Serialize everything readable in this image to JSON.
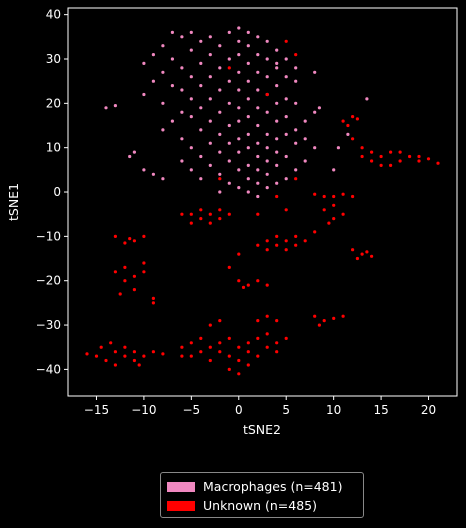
{
  "chart_data": {
    "type": "scatter",
    "xlabel": "tSNE2",
    "ylabel": "tSNE1",
    "xlim": [
      -18,
      23
    ],
    "ylim": [
      -46,
      41.5
    ],
    "xticks": [
      -15,
      -10,
      -5,
      0,
      5,
      10,
      15,
      20
    ],
    "yticks": [
      -40,
      -30,
      -20,
      -10,
      0,
      10,
      20,
      30,
      40
    ],
    "legend_position": "bottom-center",
    "series": [
      {
        "name": "Macrophages (n=481)",
        "color": "#f088c0",
        "points": [
          [
            -1,
            36
          ],
          [
            1,
            36
          ],
          [
            -3,
            35
          ],
          [
            2,
            35
          ],
          [
            -6,
            35
          ],
          [
            -4,
            34
          ],
          [
            0,
            34
          ],
          [
            3,
            34
          ],
          [
            -8,
            33
          ],
          [
            -2,
            33
          ],
          [
            1,
            33
          ],
          [
            4,
            32
          ],
          [
            -5,
            32
          ],
          [
            -9,
            31
          ],
          [
            -3,
            31
          ],
          [
            0,
            31
          ],
          [
            2,
            31
          ],
          [
            -7,
            30
          ],
          [
            -1,
            30
          ],
          [
            3,
            30
          ],
          [
            5,
            30
          ],
          [
            -10,
            29
          ],
          [
            -4,
            29
          ],
          [
            1,
            29
          ],
          [
            -6,
            28
          ],
          [
            -2,
            28
          ],
          [
            4,
            28
          ],
          [
            6,
            28
          ],
          [
            -8,
            27
          ],
          [
            0,
            27
          ],
          [
            2,
            27
          ],
          [
            -5,
            26
          ],
          [
            -3,
            26
          ],
          [
            3,
            26
          ],
          [
            5,
            26
          ],
          [
            -9,
            25
          ],
          [
            -1,
            25
          ],
          [
            1,
            25
          ],
          [
            -7,
            24
          ],
          [
            -4,
            24
          ],
          [
            4,
            24
          ],
          [
            -6,
            23
          ],
          [
            -2,
            23
          ],
          [
            0,
            23
          ],
          [
            2,
            23
          ],
          [
            -10,
            22
          ],
          [
            3,
            22
          ],
          [
            -5,
            21
          ],
          [
            -3,
            21
          ],
          [
            1,
            21
          ],
          [
            5,
            21
          ],
          [
            -8,
            20
          ],
          [
            -1,
            20
          ],
          [
            4,
            20
          ],
          [
            6,
            20
          ],
          [
            -4,
            19
          ],
          [
            0,
            19
          ],
          [
            2,
            19
          ],
          [
            -6,
            18
          ],
          [
            -2,
            18
          ],
          [
            3,
            18
          ],
          [
            8,
            18
          ],
          [
            -5,
            17
          ],
          [
            1,
            17
          ],
          [
            5,
            17
          ],
          [
            -7,
            16
          ],
          [
            -3,
            16
          ],
          [
            0,
            16
          ],
          [
            4,
            16
          ],
          [
            7,
            16
          ],
          [
            -1,
            15
          ],
          [
            2,
            15
          ],
          [
            -4,
            14
          ],
          [
            6,
            14
          ],
          [
            -8,
            14
          ],
          [
            -2,
            13
          ],
          [
            1,
            13
          ],
          [
            3,
            13
          ],
          [
            5,
            13
          ],
          [
            -6,
            12
          ],
          [
            0,
            12
          ],
          [
            4,
            12
          ],
          [
            7,
            12
          ],
          [
            -3,
            11
          ],
          [
            -1,
            11
          ],
          [
            2,
            11
          ],
          [
            6,
            11
          ],
          [
            -5,
            10
          ],
          [
            1,
            10
          ],
          [
            3,
            10
          ],
          [
            8,
            10
          ],
          [
            -2,
            9
          ],
          [
            0,
            9
          ],
          [
            4,
            9
          ],
          [
            -4,
            8
          ],
          [
            2,
            8
          ],
          [
            5,
            8
          ],
          [
            -6,
            7
          ],
          [
            -1,
            7
          ],
          [
            3,
            7
          ],
          [
            7,
            7
          ],
          [
            -3,
            6
          ],
          [
            1,
            6
          ],
          [
            4,
            6
          ],
          [
            -5,
            5
          ],
          [
            0,
            5
          ],
          [
            2,
            5
          ],
          [
            6,
            5
          ],
          [
            -2,
            4
          ],
          [
            3,
            4
          ],
          [
            -4,
            3
          ],
          [
            1,
            3
          ],
          [
            5,
            3
          ],
          [
            -1,
            2
          ],
          [
            2,
            2
          ],
          [
            4,
            2
          ],
          [
            0,
            1
          ],
          [
            3,
            1
          ],
          [
            -2,
            0
          ],
          [
            1,
            0
          ],
          [
            2,
            -1
          ],
          [
            -14,
            19
          ],
          [
            -13,
            19.5
          ],
          [
            -11.5,
            8
          ],
          [
            -11,
            9
          ],
          [
            -10,
            5
          ],
          [
            -9,
            4
          ],
          [
            -8,
            3
          ],
          [
            13.5,
            21
          ],
          [
            8.5,
            19
          ],
          [
            10.5,
            10
          ],
          [
            11.5,
            13
          ],
          [
            10,
            5
          ],
          [
            -7,
            36
          ],
          [
            -5,
            36
          ],
          [
            0,
            37
          ],
          [
            4,
            29
          ],
          [
            6,
            25
          ],
          [
            8,
            27
          ]
        ]
      },
      {
        "name": "Unknown (n=485)",
        "color": "#ff0000",
        "points": [
          [
            -16,
            -36.5
          ],
          [
            -15,
            -37
          ],
          [
            -14,
            -38
          ],
          [
            -13,
            -36
          ],
          [
            -13,
            -39
          ],
          [
            -12,
            -35
          ],
          [
            -12,
            -37
          ],
          [
            -11,
            -36
          ],
          [
            -11,
            -38
          ],
          [
            -10,
            -37
          ],
          [
            -9,
            -36
          ],
          [
            -8,
            -36.5
          ],
          [
            -13.5,
            -34
          ],
          [
            -14.5,
            -35
          ],
          [
            -10.5,
            -39
          ],
          [
            -6,
            -35
          ],
          [
            -5,
            -34
          ],
          [
            -5,
            -37
          ],
          [
            -4,
            -33
          ],
          [
            -4,
            -36
          ],
          [
            -3,
            -35
          ],
          [
            -3,
            -38
          ],
          [
            -2,
            -34
          ],
          [
            -2,
            -36
          ],
          [
            -1,
            -33
          ],
          [
            -1,
            -37
          ],
          [
            0,
            -35
          ],
          [
            0,
            -38
          ],
          [
            1,
            -34
          ],
          [
            1,
            -36
          ],
          [
            2,
            -33
          ],
          [
            2,
            -37
          ],
          [
            3,
            -35
          ],
          [
            3,
            -32
          ],
          [
            4,
            -34
          ],
          [
            4,
            -36
          ],
          [
            5,
            -33
          ],
          [
            -1,
            -40
          ],
          [
            0,
            -41
          ],
          [
            1,
            -39
          ],
          [
            -3,
            -30
          ],
          [
            -2,
            -29
          ],
          [
            2,
            -29
          ],
          [
            3,
            -28
          ],
          [
            4,
            -29
          ],
          [
            -6,
            -37
          ],
          [
            8,
            -28
          ],
          [
            9,
            -29
          ],
          [
            10,
            -28.5
          ],
          [
            11,
            -28
          ],
          [
            8.5,
            -30
          ],
          [
            -13,
            -18
          ],
          [
            -12,
            -17
          ],
          [
            -12,
            -20
          ],
          [
            -11,
            -19
          ],
          [
            -11,
            -22
          ],
          [
            -10,
            -18
          ],
          [
            -10,
            -16
          ],
          [
            -12.5,
            -23
          ],
          [
            -9,
            -25
          ],
          [
            -9,
            -24
          ],
          [
            -11.5,
            -10.5
          ],
          [
            -12,
            -11.5
          ],
          [
            -11,
            -11
          ],
          [
            -13,
            -10
          ],
          [
            -10,
            -10
          ],
          [
            -5,
            -5
          ],
          [
            -4,
            -6
          ],
          [
            -4,
            -4
          ],
          [
            -3,
            -5
          ],
          [
            -3,
            -7
          ],
          [
            -2,
            -6
          ],
          [
            -1,
            -5
          ],
          [
            -5,
            -7
          ],
          [
            -2,
            -4
          ],
          [
            -6,
            -5
          ],
          [
            3,
            -11
          ],
          [
            4,
            -12
          ],
          [
            4,
            -10
          ],
          [
            5,
            -11
          ],
          [
            5,
            -13
          ],
          [
            6,
            -12
          ],
          [
            6,
            -10
          ],
          [
            7,
            -11
          ],
          [
            3,
            -13
          ],
          [
            2,
            -12
          ],
          [
            8,
            -9
          ],
          [
            0,
            -14
          ],
          [
            -1,
            -17
          ],
          [
            0,
            -20
          ],
          [
            1,
            -21
          ],
          [
            2,
            -20
          ],
          [
            3,
            -21
          ],
          [
            0.5,
            -21.5
          ],
          [
            9,
            -4
          ],
          [
            10,
            -3
          ],
          [
            10,
            -6
          ],
          [
            11,
            -5
          ],
          [
            9.5,
            -7
          ],
          [
            9,
            -1
          ],
          [
            10,
            -1
          ],
          [
            11,
            -0.5
          ],
          [
            12,
            -1
          ],
          [
            8,
            -0.5
          ],
          [
            12,
            -13
          ],
          [
            13,
            -14
          ],
          [
            14,
            -14.5
          ],
          [
            13.5,
            -13.5
          ],
          [
            12.5,
            -15
          ],
          [
            12,
            12
          ],
          [
            13,
            10
          ],
          [
            14,
            9
          ],
          [
            15,
            8
          ],
          [
            16,
            9
          ],
          [
            17,
            7
          ],
          [
            18,
            8
          ],
          [
            19,
            7
          ],
          [
            20,
            7.5
          ],
          [
            21,
            6.5
          ],
          [
            15,
            6
          ],
          [
            14,
            7
          ],
          [
            16,
            6
          ],
          [
            13,
            8
          ],
          [
            17,
            9
          ],
          [
            19,
            8
          ],
          [
            11,
            16
          ],
          [
            12,
            17
          ],
          [
            11.5,
            15
          ],
          [
            12.5,
            16.5
          ],
          [
            5,
            34
          ],
          [
            6,
            31
          ],
          [
            3,
            22
          ],
          [
            -1,
            28
          ],
          [
            6,
            3
          ],
          [
            5,
            -4
          ],
          [
            4,
            -1
          ],
          [
            -2,
            3
          ],
          [
            2,
            -5
          ]
        ]
      }
    ]
  }
}
